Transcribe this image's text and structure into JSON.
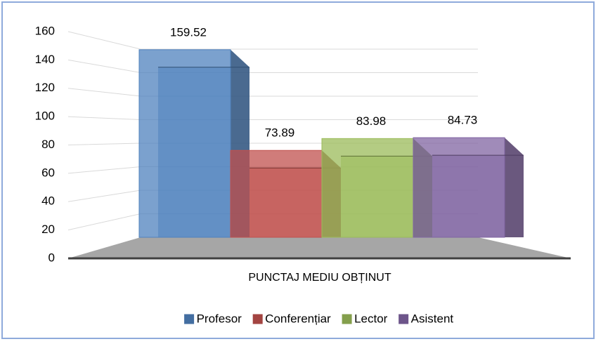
{
  "chart_data": {
    "type": "bar3d",
    "categories": [
      "PUNCTAJ MEDIU OBȚINUT"
    ],
    "series": [
      {
        "name": "Profesor",
        "color": "#4f81bd",
        "values": [
          159.52
        ]
      },
      {
        "name": "Conferențiar",
        "color": "#c0504d",
        "values": [
          73.89
        ]
      },
      {
        "name": "Lector",
        "color": "#9bbb59",
        "values": [
          83.98
        ]
      },
      {
        "name": "Asistent",
        "color": "#8064a2",
        "values": [
          84.73
        ]
      }
    ],
    "ylim": [
      0,
      160
    ],
    "yticks": [
      0,
      20,
      40,
      60,
      80,
      100,
      120,
      140,
      160
    ],
    "grid": true,
    "legend": "bottom"
  }
}
